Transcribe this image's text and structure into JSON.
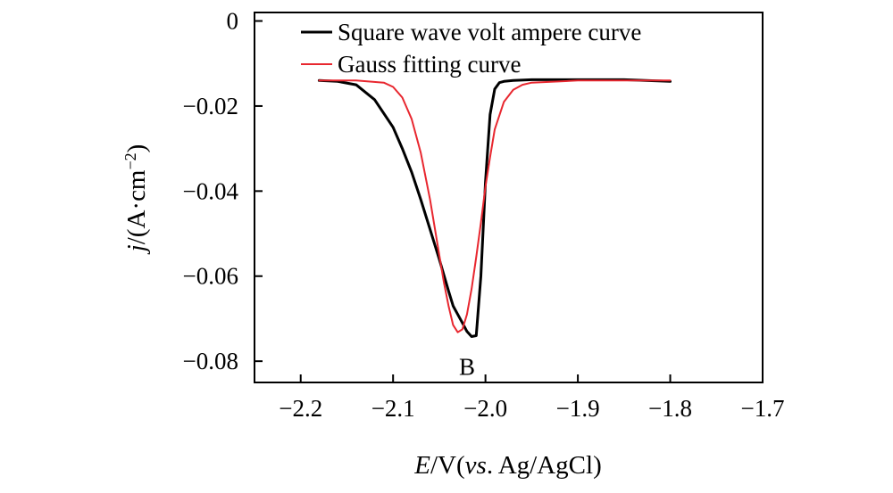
{
  "chart_data": {
    "type": "line",
    "xlabel": {
      "var": "E",
      "unit": "/V(",
      "vs": "vs",
      "ref": ". Ag/AgCl)"
    },
    "ylabel": {
      "var": "j",
      "unit": "/(A·cm",
      "exp": "−2",
      "close": ")"
    },
    "xlim": [
      -2.25,
      -1.7
    ],
    "ylim": [
      -0.085,
      0.002
    ],
    "xticks": [
      -2.2,
      -2.1,
      -2.0,
      -1.9,
      -1.8,
      -1.7
    ],
    "xtick_labels": [
      "−2.2",
      "−2.1",
      "−2.0",
      "−1.9",
      "−1.8",
      "−1.7"
    ],
    "yticks": [
      0,
      -0.02,
      -0.04,
      -0.06,
      -0.08
    ],
    "ytick_labels": [
      "0",
      "−0.02",
      "−0.04",
      "−0.06",
      "−0.08"
    ],
    "legend_position": "top",
    "series": [
      {
        "name": "Square wave volt ampere curve",
        "color": "#000000",
        "x": [
          -2.18,
          -2.16,
          -2.14,
          -2.12,
          -2.1,
          -2.09,
          -2.08,
          -2.07,
          -2.06,
          -2.05,
          -2.04,
          -2.035,
          -2.03,
          -2.025,
          -2.02,
          -2.015,
          -2.01,
          -2.005,
          -2.0,
          -1.995,
          -1.99,
          -1.985,
          -1.98,
          -1.97,
          -1.95,
          -1.9,
          -1.85,
          -1.8
        ],
        "y": [
          -0.014,
          -0.0142,
          -0.015,
          -0.0185,
          -0.025,
          -0.03,
          -0.0355,
          -0.042,
          -0.049,
          -0.056,
          -0.0635,
          -0.067,
          -0.069,
          -0.071,
          -0.073,
          -0.0742,
          -0.074,
          -0.06,
          -0.038,
          -0.022,
          -0.016,
          -0.0145,
          -0.0142,
          -0.014,
          -0.0138,
          -0.0138,
          -0.0138,
          -0.0142
        ]
      },
      {
        "name": "Gauss fitting curve",
        "color": "#e8272f",
        "x": [
          -2.18,
          -2.14,
          -2.11,
          -2.1,
          -2.09,
          -2.08,
          -2.07,
          -2.06,
          -2.05,
          -2.045,
          -2.04,
          -2.035,
          -2.03,
          -2.025,
          -2.02,
          -2.015,
          -2.01,
          -2.005,
          -2.0,
          -1.995,
          -1.99,
          -1.98,
          -1.97,
          -1.96,
          -1.95,
          -1.9,
          -1.85,
          -1.8
        ],
        "y": [
          -0.014,
          -0.014,
          -0.0145,
          -0.0155,
          -0.018,
          -0.023,
          -0.031,
          -0.042,
          -0.055,
          -0.0615,
          -0.067,
          -0.0715,
          -0.0732,
          -0.0725,
          -0.069,
          -0.063,
          -0.0555,
          -0.0475,
          -0.039,
          -0.032,
          -0.0255,
          -0.019,
          -0.0162,
          -0.015,
          -0.0145,
          -0.014,
          -0.014,
          -0.014
        ]
      }
    ],
    "annotations": [
      {
        "text": "B",
        "x": -2.02,
        "y": -0.0805
      }
    ]
  }
}
